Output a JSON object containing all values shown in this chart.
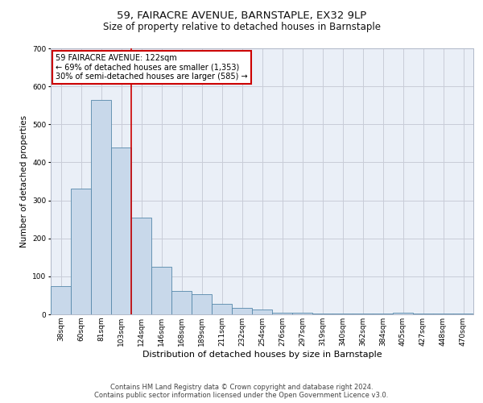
{
  "title": "59, FAIRACRE AVENUE, BARNSTAPLE, EX32 9LP",
  "subtitle": "Size of property relative to detached houses in Barnstaple",
  "xlabel": "Distribution of detached houses by size in Barnstaple",
  "ylabel": "Number of detached properties",
  "categories": [
    "38sqm",
    "60sqm",
    "81sqm",
    "103sqm",
    "124sqm",
    "146sqm",
    "168sqm",
    "189sqm",
    "211sqm",
    "232sqm",
    "254sqm",
    "276sqm",
    "297sqm",
    "319sqm",
    "340sqm",
    "362sqm",
    "384sqm",
    "405sqm",
    "427sqm",
    "448sqm",
    "470sqm"
  ],
  "values": [
    75,
    330,
    565,
    440,
    255,
    125,
    62,
    52,
    28,
    18,
    12,
    5,
    5,
    3,
    2,
    2,
    2,
    5,
    2,
    2,
    3
  ],
  "bar_color": "#c8d8ea",
  "bar_edge_color": "#5588aa",
  "vline_x_index": 3.5,
  "vline_color": "#cc0000",
  "annotation_line1": "59 FAIRACRE AVENUE: 122sqm",
  "annotation_line2": "← 69% of detached houses are smaller (1,353)",
  "annotation_line3": "30% of semi-detached houses are larger (585) →",
  "annotation_box_color": "#ffffff",
  "annotation_box_edge_color": "#cc0000",
  "ylim": [
    0,
    700
  ],
  "yticks": [
    0,
    100,
    200,
    300,
    400,
    500,
    600,
    700
  ],
  "background_color": "#eaeff7",
  "footer_line1": "Contains HM Land Registry data © Crown copyright and database right 2024.",
  "footer_line2": "Contains public sector information licensed under the Open Government Licence v3.0.",
  "title_fontsize": 9.5,
  "subtitle_fontsize": 8.5,
  "xlabel_fontsize": 8,
  "ylabel_fontsize": 7.5,
  "tick_fontsize": 6.5,
  "annotation_fontsize": 7,
  "footer_fontsize": 6
}
